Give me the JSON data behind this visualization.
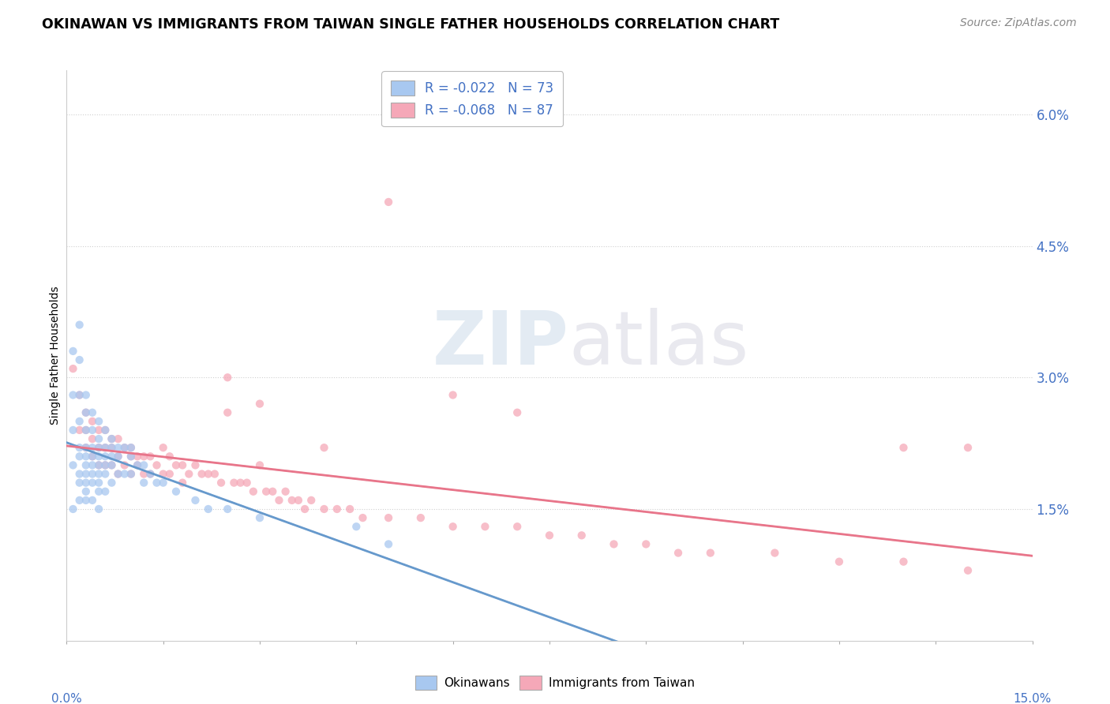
{
  "title": "OKINAWAN VS IMMIGRANTS FROM TAIWAN SINGLE FATHER HOUSEHOLDS CORRELATION CHART",
  "source": "Source: ZipAtlas.com",
  "ylabel": "Single Father Households",
  "y_ticks": [
    "1.5%",
    "3.0%",
    "4.5%",
    "6.0%"
  ],
  "y_tick_vals": [
    0.015,
    0.03,
    0.045,
    0.06
  ],
  "x_range": [
    0.0,
    0.15
  ],
  "y_range": [
    0.0,
    0.065
  ],
  "legend_okinawan_R": "R = -0.022",
  "legend_okinawan_N": "N = 73",
  "legend_taiwan_R": "R = -0.068",
  "legend_taiwan_N": "N = 87",
  "color_okinawan": "#a8c8f0",
  "color_taiwan": "#f5a8b8",
  "color_blue_text": "#4472c4",
  "color_reg_okinawan": "#6699cc",
  "color_reg_taiwan": "#e8758a",
  "background_color": "#ffffff",
  "okinawan_x": [
    0.001,
    0.001,
    0.001,
    0.001,
    0.001,
    0.002,
    0.002,
    0.002,
    0.002,
    0.002,
    0.002,
    0.002,
    0.002,
    0.002,
    0.003,
    0.003,
    0.003,
    0.003,
    0.003,
    0.003,
    0.003,
    0.003,
    0.003,
    0.003,
    0.004,
    0.004,
    0.004,
    0.004,
    0.004,
    0.004,
    0.004,
    0.004,
    0.005,
    0.005,
    0.005,
    0.005,
    0.005,
    0.005,
    0.005,
    0.005,
    0.005,
    0.006,
    0.006,
    0.006,
    0.006,
    0.006,
    0.006,
    0.007,
    0.007,
    0.007,
    0.007,
    0.007,
    0.008,
    0.008,
    0.008,
    0.009,
    0.009,
    0.01,
    0.01,
    0.01,
    0.011,
    0.012,
    0.012,
    0.013,
    0.014,
    0.015,
    0.017,
    0.02,
    0.022,
    0.025,
    0.03,
    0.045,
    0.05
  ],
  "okinawan_y": [
    0.033,
    0.028,
    0.024,
    0.02,
    0.015,
    0.036,
    0.032,
    0.028,
    0.025,
    0.022,
    0.021,
    0.019,
    0.018,
    0.016,
    0.028,
    0.026,
    0.024,
    0.022,
    0.021,
    0.02,
    0.019,
    0.018,
    0.017,
    0.016,
    0.026,
    0.024,
    0.022,
    0.021,
    0.02,
    0.019,
    0.018,
    0.016,
    0.025,
    0.023,
    0.022,
    0.021,
    0.02,
    0.019,
    0.018,
    0.017,
    0.015,
    0.024,
    0.022,
    0.021,
    0.02,
    0.019,
    0.017,
    0.023,
    0.022,
    0.021,
    0.02,
    0.018,
    0.022,
    0.021,
    0.019,
    0.022,
    0.019,
    0.022,
    0.021,
    0.019,
    0.02,
    0.02,
    0.018,
    0.019,
    0.018,
    0.018,
    0.017,
    0.016,
    0.015,
    0.015,
    0.014,
    0.013,
    0.011
  ],
  "taiwan_x": [
    0.001,
    0.002,
    0.002,
    0.003,
    0.003,
    0.003,
    0.004,
    0.004,
    0.004,
    0.005,
    0.005,
    0.005,
    0.006,
    0.006,
    0.006,
    0.007,
    0.007,
    0.007,
    0.008,
    0.008,
    0.008,
    0.009,
    0.009,
    0.01,
    0.01,
    0.01,
    0.011,
    0.011,
    0.012,
    0.012,
    0.013,
    0.013,
    0.014,
    0.015,
    0.015,
    0.016,
    0.016,
    0.017,
    0.018,
    0.018,
    0.019,
    0.02,
    0.021,
    0.022,
    0.023,
    0.024,
    0.025,
    0.026,
    0.027,
    0.028,
    0.029,
    0.03,
    0.031,
    0.032,
    0.033,
    0.034,
    0.035,
    0.036,
    0.037,
    0.038,
    0.04,
    0.042,
    0.044,
    0.046,
    0.05,
    0.055,
    0.06,
    0.065,
    0.07,
    0.075,
    0.08,
    0.085,
    0.09,
    0.095,
    0.1,
    0.11,
    0.12,
    0.13,
    0.14,
    0.025,
    0.03,
    0.04,
    0.05,
    0.06,
    0.07,
    0.13,
    0.14
  ],
  "taiwan_y": [
    0.031,
    0.028,
    0.024,
    0.026,
    0.024,
    0.022,
    0.025,
    0.023,
    0.021,
    0.024,
    0.022,
    0.02,
    0.024,
    0.022,
    0.02,
    0.023,
    0.022,
    0.02,
    0.023,
    0.021,
    0.019,
    0.022,
    0.02,
    0.022,
    0.021,
    0.019,
    0.021,
    0.02,
    0.021,
    0.019,
    0.021,
    0.019,
    0.02,
    0.022,
    0.019,
    0.021,
    0.019,
    0.02,
    0.02,
    0.018,
    0.019,
    0.02,
    0.019,
    0.019,
    0.019,
    0.018,
    0.026,
    0.018,
    0.018,
    0.018,
    0.017,
    0.02,
    0.017,
    0.017,
    0.016,
    0.017,
    0.016,
    0.016,
    0.015,
    0.016,
    0.015,
    0.015,
    0.015,
    0.014,
    0.014,
    0.014,
    0.013,
    0.013,
    0.013,
    0.012,
    0.012,
    0.011,
    0.011,
    0.01,
    0.01,
    0.01,
    0.009,
    0.009,
    0.008,
    0.03,
    0.027,
    0.022,
    0.05,
    0.028,
    0.026,
    0.022,
    0.022
  ]
}
